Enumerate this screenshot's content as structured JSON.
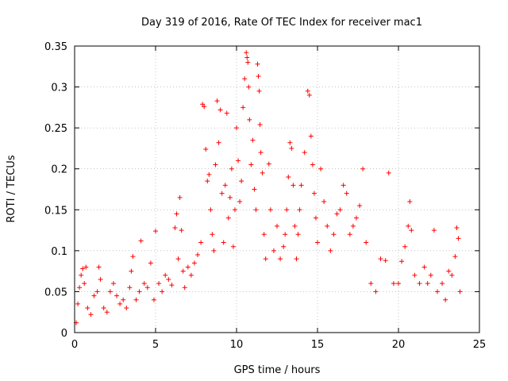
{
  "chart_data": {
    "type": "scatter",
    "title": "Day 319 of 2016, Rate Of TEC Index for receiver mac1",
    "xlabel": "GPS time / hours",
    "ylabel": "ROTI / TECUs",
    "xlim": [
      0,
      25
    ],
    "ylim": [
      0,
      0.35
    ],
    "xticks": [
      0,
      5,
      10,
      15,
      20,
      25
    ],
    "xtick_labels": [
      "0",
      "5",
      "10",
      "15",
      "20",
      "25"
    ],
    "yticks": [
      0,
      0.05,
      0.1,
      0.15,
      0.2,
      0.25,
      0.3,
      0.35
    ],
    "ytick_labels": [
      "0",
      "0.05",
      "0.1",
      "0.15",
      "0.2",
      "0.25",
      "0.3",
      "0.35"
    ],
    "grid": true,
    "marker": "+",
    "marker_color": "#ff0000",
    "series": [
      {
        "name": "ROTI",
        "points": [
          [
            0.1,
            0.012
          ],
          [
            0.2,
            0.035
          ],
          [
            0.3,
            0.055
          ],
          [
            0.4,
            0.07
          ],
          [
            0.5,
            0.078
          ],
          [
            0.6,
            0.06
          ],
          [
            0.7,
            0.08
          ],
          [
            0.8,
            0.03
          ],
          [
            1.0,
            0.022
          ],
          [
            1.2,
            0.045
          ],
          [
            1.4,
            0.05
          ],
          [
            1.5,
            0.08
          ],
          [
            1.6,
            0.065
          ],
          [
            1.8,
            0.03
          ],
          [
            2.0,
            0.025
          ],
          [
            2.2,
            0.05
          ],
          [
            2.4,
            0.06
          ],
          [
            2.6,
            0.045
          ],
          [
            2.8,
            0.035
          ],
          [
            3.0,
            0.04
          ],
          [
            3.2,
            0.03
          ],
          [
            3.4,
            0.055
          ],
          [
            3.5,
            0.075
          ],
          [
            3.6,
            0.093
          ],
          [
            3.8,
            0.04
          ],
          [
            4.0,
            0.05
          ],
          [
            4.1,
            0.112
          ],
          [
            4.3,
            0.06
          ],
          [
            4.5,
            0.055
          ],
          [
            4.7,
            0.085
          ],
          [
            4.9,
            0.04
          ],
          [
            5.0,
            0.124
          ],
          [
            5.2,
            0.06
          ],
          [
            5.4,
            0.05
          ],
          [
            5.6,
            0.07
          ],
          [
            5.8,
            0.065
          ],
          [
            6.0,
            0.058
          ],
          [
            6.2,
            0.128
          ],
          [
            6.3,
            0.145
          ],
          [
            6.4,
            0.09
          ],
          [
            6.5,
            0.165
          ],
          [
            6.6,
            0.125
          ],
          [
            6.7,
            0.075
          ],
          [
            6.8,
            0.055
          ],
          [
            7.0,
            0.08
          ],
          [
            7.2,
            0.07
          ],
          [
            7.4,
            0.085
          ],
          [
            7.6,
            0.095
          ],
          [
            7.8,
            0.11
          ],
          [
            7.9,
            0.279
          ],
          [
            8.0,
            0.276
          ],
          [
            8.1,
            0.224
          ],
          [
            8.2,
            0.185
          ],
          [
            8.3,
            0.193
          ],
          [
            8.4,
            0.15
          ],
          [
            8.5,
            0.12
          ],
          [
            8.6,
            0.1
          ],
          [
            8.7,
            0.205
          ],
          [
            8.8,
            0.283
          ],
          [
            8.9,
            0.232
          ],
          [
            9.0,
            0.272
          ],
          [
            9.1,
            0.17
          ],
          [
            9.2,
            0.11
          ],
          [
            9.3,
            0.18
          ],
          [
            9.4,
            0.268
          ],
          [
            9.5,
            0.14
          ],
          [
            9.6,
            0.165
          ],
          [
            9.7,
            0.2
          ],
          [
            9.8,
            0.105
          ],
          [
            9.9,
            0.15
          ],
          [
            10.0,
            0.25
          ],
          [
            10.1,
            0.21
          ],
          [
            10.2,
            0.16
          ],
          [
            10.3,
            0.185
          ],
          [
            10.4,
            0.275
          ],
          [
            10.5,
            0.31
          ],
          [
            10.6,
            0.342
          ],
          [
            10.65,
            0.336
          ],
          [
            10.7,
            0.33
          ],
          [
            10.75,
            0.3
          ],
          [
            10.8,
            0.26
          ],
          [
            10.9,
            0.205
          ],
          [
            11.0,
            0.235
          ],
          [
            11.1,
            0.175
          ],
          [
            11.2,
            0.15
          ],
          [
            11.3,
            0.328
          ],
          [
            11.35,
            0.313
          ],
          [
            11.4,
            0.295
          ],
          [
            11.45,
            0.254
          ],
          [
            11.5,
            0.22
          ],
          [
            11.6,
            0.195
          ],
          [
            11.7,
            0.12
          ],
          [
            11.8,
            0.09
          ],
          [
            12.0,
            0.206
          ],
          [
            12.1,
            0.15
          ],
          [
            12.3,
            0.1
          ],
          [
            12.5,
            0.13
          ],
          [
            12.7,
            0.09
          ],
          [
            12.9,
            0.105
          ],
          [
            13.0,
            0.12
          ],
          [
            13.1,
            0.15
          ],
          [
            13.2,
            0.19
          ],
          [
            13.3,
            0.232
          ],
          [
            13.4,
            0.225
          ],
          [
            13.5,
            0.18
          ],
          [
            13.6,
            0.13
          ],
          [
            13.7,
            0.09
          ],
          [
            13.8,
            0.12
          ],
          [
            13.9,
            0.15
          ],
          [
            14.0,
            0.18
          ],
          [
            14.2,
            0.22
          ],
          [
            14.4,
            0.295
          ],
          [
            14.5,
            0.29
          ],
          [
            14.6,
            0.24
          ],
          [
            14.7,
            0.205
          ],
          [
            14.8,
            0.17
          ],
          [
            14.9,
            0.14
          ],
          [
            15.0,
            0.11
          ],
          [
            15.2,
            0.2
          ],
          [
            15.4,
            0.16
          ],
          [
            15.6,
            0.13
          ],
          [
            15.8,
            0.1
          ],
          [
            16.0,
            0.12
          ],
          [
            16.2,
            0.145
          ],
          [
            16.4,
            0.15
          ],
          [
            16.6,
            0.18
          ],
          [
            16.8,
            0.17
          ],
          [
            17.0,
            0.12
          ],
          [
            17.2,
            0.13
          ],
          [
            17.4,
            0.14
          ],
          [
            17.6,
            0.155
          ],
          [
            17.8,
            0.2
          ],
          [
            18.0,
            0.11
          ],
          [
            18.3,
            0.06
          ],
          [
            18.6,
            0.05
          ],
          [
            18.9,
            0.09
          ],
          [
            19.2,
            0.088
          ],
          [
            19.4,
            0.195
          ],
          [
            19.7,
            0.06
          ],
          [
            20.0,
            0.06
          ],
          [
            20.2,
            0.087
          ],
          [
            20.4,
            0.105
          ],
          [
            20.6,
            0.13
          ],
          [
            20.7,
            0.16
          ],
          [
            20.8,
            0.125
          ],
          [
            21.0,
            0.07
          ],
          [
            21.3,
            0.06
          ],
          [
            21.6,
            0.08
          ],
          [
            21.8,
            0.06
          ],
          [
            22.0,
            0.07
          ],
          [
            22.2,
            0.125
          ],
          [
            22.4,
            0.05
          ],
          [
            22.7,
            0.06
          ],
          [
            22.9,
            0.04
          ],
          [
            23.1,
            0.075
          ],
          [
            23.3,
            0.07
          ],
          [
            23.5,
            0.093
          ],
          [
            23.6,
            0.128
          ],
          [
            23.7,
            0.115
          ],
          [
            23.8,
            0.05
          ]
        ]
      }
    ]
  }
}
